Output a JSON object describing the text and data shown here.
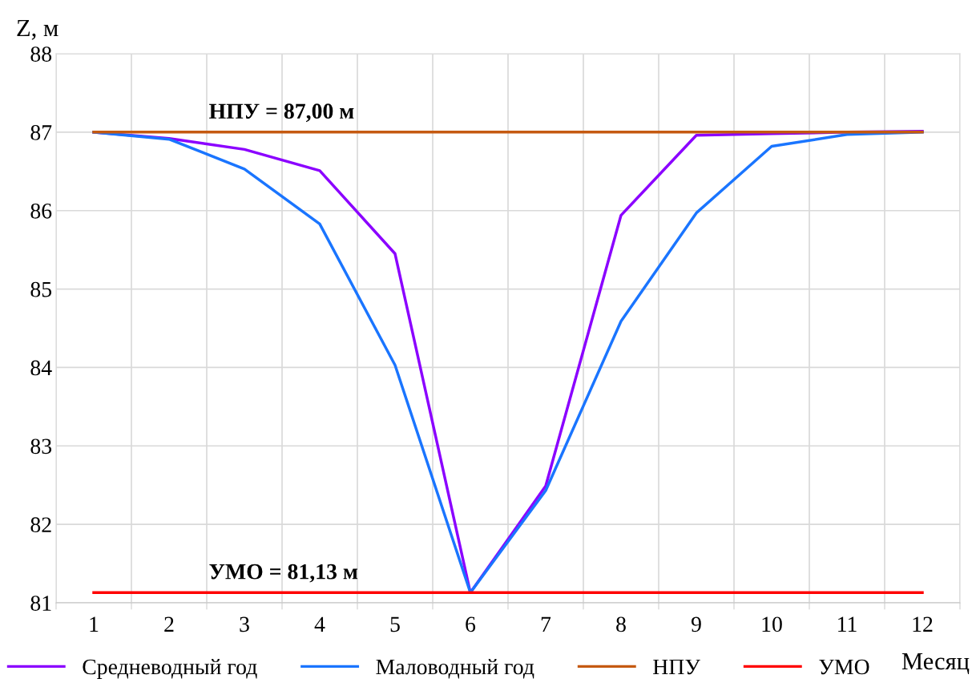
{
  "chart_data": {
    "type": "line",
    "xlabel": "Месяц",
    "ylabel": "Z, м",
    "categories": [
      "1",
      "2",
      "3",
      "4",
      "5",
      "6",
      "7",
      "8",
      "9",
      "10",
      "11",
      "12"
    ],
    "series": [
      {
        "name": "Средневодный год",
        "color": "#8b00ff",
        "values": [
          87.0,
          86.92,
          86.78,
          86.51,
          85.45,
          81.13,
          82.49,
          85.94,
          86.96,
          86.98,
          87.0,
          87.01
        ]
      },
      {
        "name": "Маловодный год",
        "color": "#1a75ff",
        "values": [
          87.0,
          86.91,
          86.53,
          85.83,
          84.03,
          81.13,
          82.43,
          84.59,
          85.97,
          86.82,
          86.97,
          87.0
        ]
      },
      {
        "name": "НПУ",
        "color": "#c55a11",
        "values": [
          87.0,
          87.0,
          87.0,
          87.0,
          87.0,
          87.0,
          87.0,
          87.0,
          87.0,
          87.0,
          87.0,
          87.0
        ]
      },
      {
        "name": "УМО",
        "color": "#ff0000",
        "values": [
          81.13,
          81.13,
          81.13,
          81.13,
          81.13,
          81.13,
          81.13,
          81.13,
          81.13,
          81.13,
          81.13,
          81.13
        ]
      }
    ],
    "annotations": [
      {
        "text": "НПУ = 87,00 м",
        "x": "3",
        "y": 87.0
      },
      {
        "text": "УМО = 81,13 м",
        "x": "3",
        "y": 81.13
      }
    ],
    "ylim": [
      81,
      88
    ],
    "yticks": [
      81,
      82,
      83,
      84,
      85,
      86,
      87,
      88
    ],
    "grid": true,
    "legend": "bottom",
    "marker": "none",
    "line_style": "solid"
  }
}
